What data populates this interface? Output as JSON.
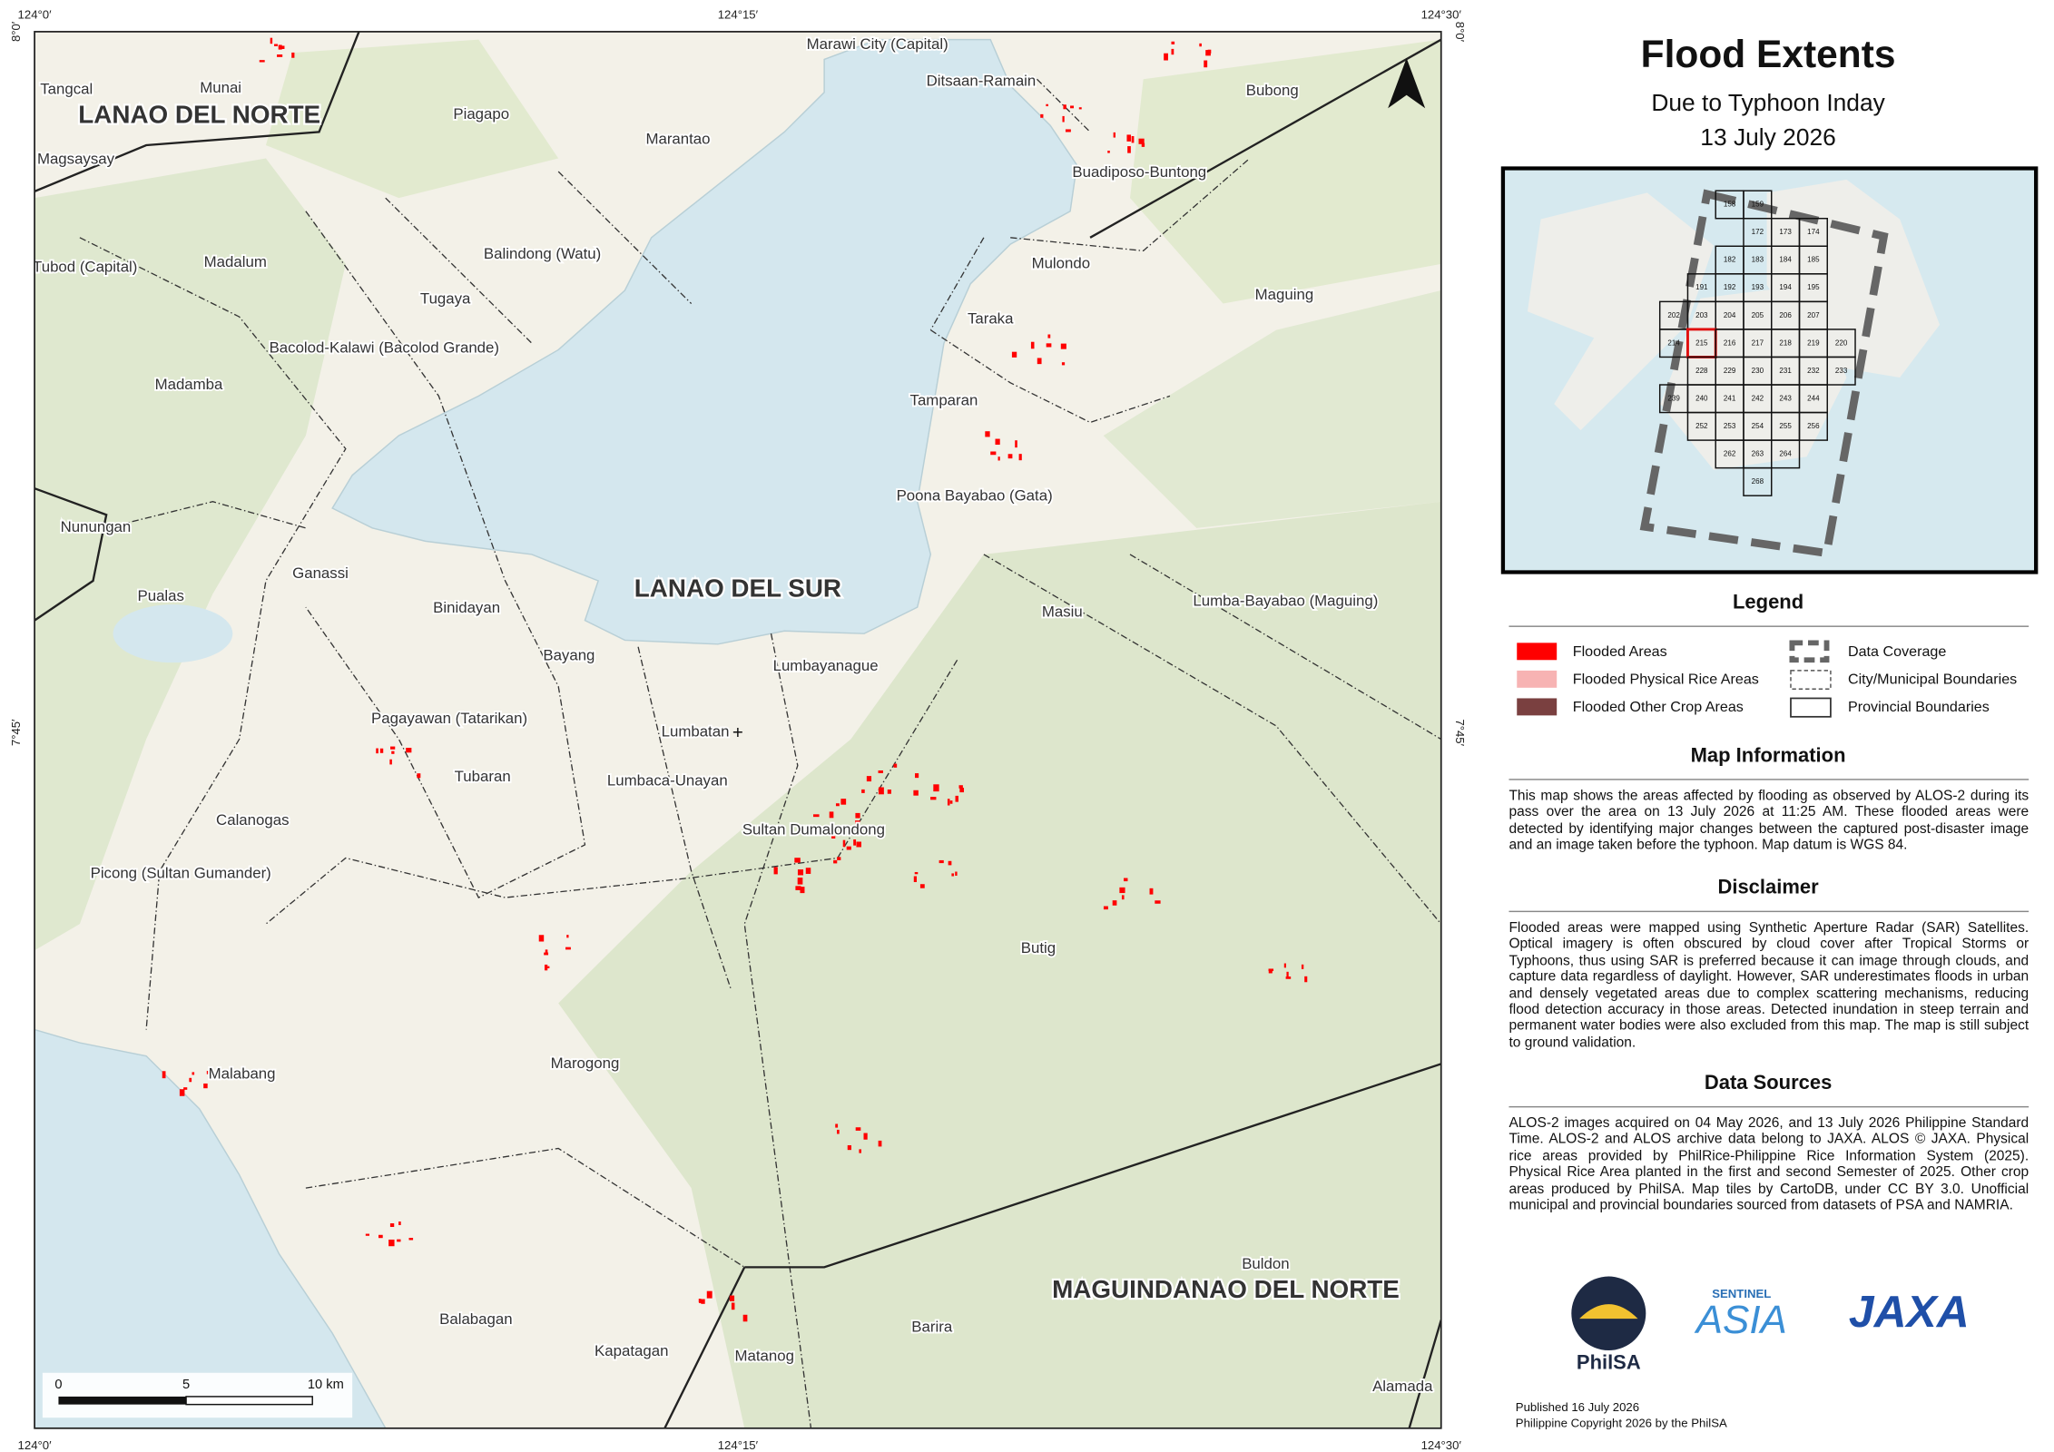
{
  "map": {
    "coordinates": {
      "top": [
        "124°0′",
        "124°15′",
        "124°30′"
      ],
      "bottom": [
        "124°0′",
        "124°15′",
        "124°30′"
      ],
      "left": [
        "8°0′",
        "7°45′"
      ],
      "right": [
        "8°0′",
        "7°45′"
      ]
    },
    "places": [
      "Marawi City (Capital)",
      "Tangcal",
      "Munai",
      "Piagapo",
      "Ditsaan-Ramain",
      "Bubong",
      "Magsaysay",
      "Marantao",
      "Buadiposo-Buntong",
      "Balindong (Watu)",
      "Madalum",
      "Tubod (Capital)",
      "Mulondo",
      "Tugaya",
      "Maguing",
      "Taraka",
      "Bacolod-Kalawi (Bacolod Grande)",
      "Madamba",
      "Tamparan",
      "Poona Bayabao (Gata)",
      "Nunungan",
      "Ganassi",
      "Pualas",
      "Binidayan",
      "Masiu",
      "Lumba-Bayabao (Maguing)",
      "Bayang",
      "Lumbayanague",
      "Pagayawan (Tatarikan)",
      "Lumbatan",
      "Tubaran",
      "Lumbaca-Unayan",
      "Calanogas",
      "Sultan Dumalondong",
      "Picong (Sultan Gumander)",
      "Butig",
      "Marogong",
      "Malabang",
      "Buldon",
      "Balabagan",
      "Barira",
      "Kapatagan",
      "Matanog",
      "Alamada"
    ],
    "provinces": [
      "LANAO DEL NORTE",
      "LANAO DEL SUR",
      "MAGUINDANAO DEL NORTE"
    ],
    "scale_bar": {
      "labels": [
        "0",
        "5",
        "10 km"
      ]
    }
  },
  "header": {
    "title": "Flood Extents",
    "subtitle": "Due to Typhoon Inday",
    "date": "13 July 2026"
  },
  "inset": {
    "tiles": [
      [
        "158",
        "159"
      ],
      [
        "172",
        "173",
        "174"
      ],
      [
        "182",
        "183",
        "184",
        "185"
      ],
      [
        "191",
        "192",
        "193",
        "194",
        "195"
      ],
      [
        "202",
        "203",
        "204",
        "205",
        "206",
        "207"
      ],
      [
        "214",
        "215",
        "216",
        "217",
        "218",
        "219",
        "220"
      ],
      [
        "228",
        "229",
        "230",
        "231",
        "232",
        "233"
      ],
      [
        "239",
        "240",
        "241",
        "242",
        "243",
        "244"
      ],
      [
        "252",
        "253",
        "254",
        "255",
        "256"
      ],
      [
        "262",
        "263",
        "264"
      ],
      [
        "268"
      ]
    ]
  },
  "legend": {
    "title": "Legend",
    "items": [
      "Flooded Areas",
      "Flooded Physical Rice Areas",
      "Flooded Other Crop Areas",
      "Data Coverage",
      "City/Municipal Boundaries",
      "Provincial Boundaries"
    ]
  },
  "map_information": {
    "heading": "Map Information",
    "text": "This map shows the areas affected by flooding as observed by ALOS-2 during its pass over the area on 13 July 2026 at 11:25 AM. These flooded areas were detected by identifying major changes between the captured post-disaster image and an image taken before the typhoon. Map datum is WGS 84."
  },
  "disclaimer": {
    "heading": "Disclaimer",
    "text": "Flooded areas were mapped using Synthetic Aperture Radar (SAR) Satellites. Optical imagery is often obscured by cloud cover after Tropical Storms or Typhoons, thus using SAR is preferred because it can image through clouds, and capture data regardless of daylight. However, SAR underestimates floods in urban and densely vegetated areas due to complex scattering mechanisms, reducing flood detection accuracy in those areas. Detected inundation in steep terrain and permanent water bodies were also excluded from this map. The map is still subject to ground validation."
  },
  "data_sources": {
    "heading": "Data Sources",
    "text": "ALOS-2 images acquired on 04 May 2026, and 13 July 2026 Philippine Standard Time. ALOS-2 and ALOS archive data belong to JAXA. ALOS © JAXA. Physical rice areas provided by PhilRice-Philippine Rice Information System (2025). Physical Rice Area planted in the first and second Semester of 2025. Other crop areas produced by PhilSA. Map tiles by CartoDB, under CC BY 3.0. Unofficial municipal and provincial boundaries sourced from datasets of PSA and NAMRIA."
  },
  "logos": {
    "philsa": "PhilSA",
    "sentinel": "SENTINEL",
    "sentinel_asia": "ASIA",
    "jaxa": "JAXA"
  },
  "footer": {
    "published": "Published 16 July 2026",
    "copyright": "Philippine Copyright 2026 by the PhilSA"
  }
}
